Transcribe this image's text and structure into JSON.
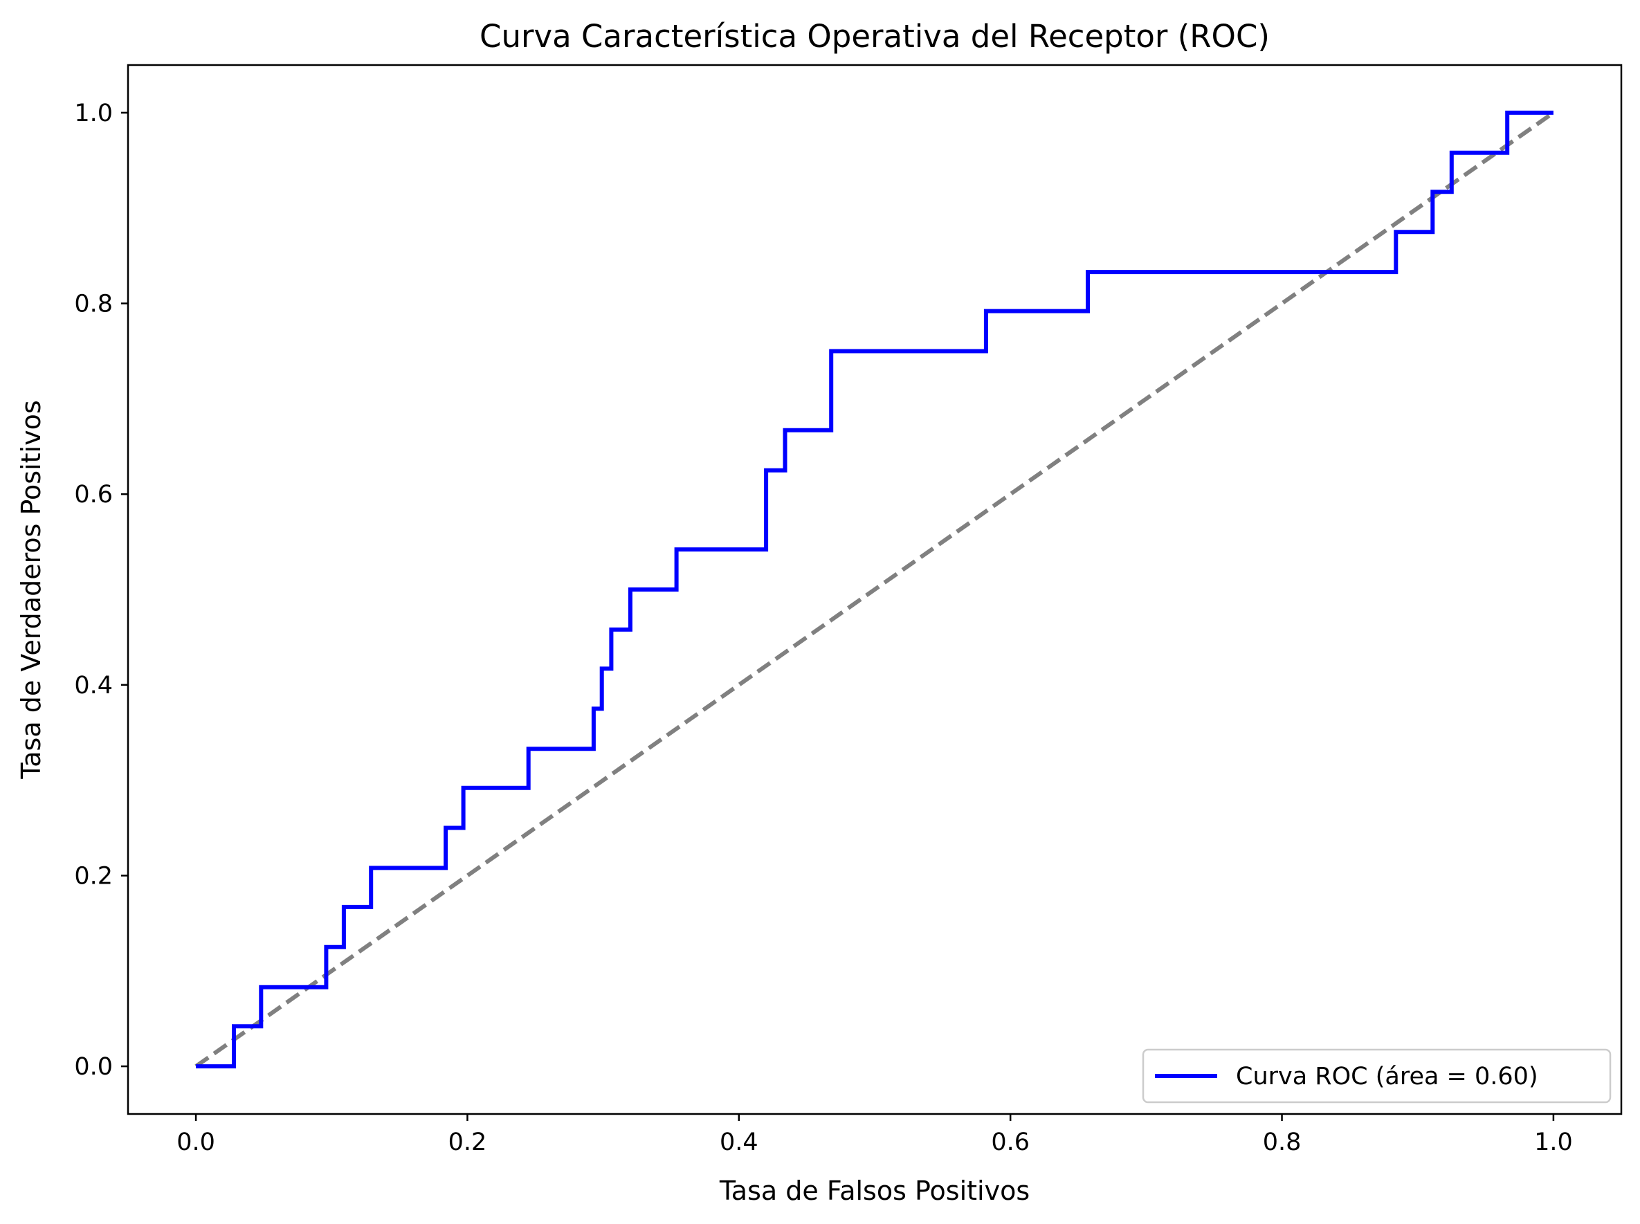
{
  "chart_data": {
    "type": "line",
    "title": "Curva Característica Operativa del Receptor (ROC)",
    "xlabel": "Tasa de Falsos Positivos",
    "ylabel": "Tasa de Verdaderos Positivos",
    "xlim": [
      -0.05,
      1.05
    ],
    "ylim": [
      -0.05,
      1.05
    ],
    "xticks": [
      0.0,
      0.2,
      0.4,
      0.6,
      0.8,
      1.0
    ],
    "xtick_labels": [
      "0.0",
      "0.2",
      "0.4",
      "0.6",
      "0.8",
      "1.0"
    ],
    "yticks": [
      0.0,
      0.2,
      0.4,
      0.6,
      0.8,
      1.0
    ],
    "ytick_labels": [
      "0.0",
      "0.2",
      "0.4",
      "0.6",
      "0.8",
      "1.0"
    ],
    "grid": false,
    "legend_position": "lower-right",
    "series": [
      {
        "name": "Curva ROC (área = 0.60)",
        "color": "#0000ff",
        "style": "step",
        "x": [
          0.0,
          0.0,
          0.028,
          0.028,
          0.048,
          0.048,
          0.096,
          0.096,
          0.109,
          0.109,
          0.129,
          0.129,
          0.184,
          0.184,
          0.197,
          0.197,
          0.245,
          0.245,
          0.293,
          0.293,
          0.299,
          0.299,
          0.306,
          0.306,
          0.32,
          0.32,
          0.354,
          0.354,
          0.42,
          0.42,
          0.434,
          0.434,
          0.468,
          0.468,
          0.582,
          0.582,
          0.657,
          0.657,
          0.884,
          0.884,
          0.911,
          0.911,
          0.925,
          0.925,
          0.966,
          0.966,
          1.0
        ],
        "y": [
          0.0,
          0.0,
          0.0,
          0.042,
          0.042,
          0.083,
          0.083,
          0.125,
          0.125,
          0.167,
          0.167,
          0.208,
          0.208,
          0.25,
          0.25,
          0.292,
          0.292,
          0.333,
          0.333,
          0.375,
          0.375,
          0.417,
          0.417,
          0.458,
          0.458,
          0.5,
          0.5,
          0.542,
          0.542,
          0.625,
          0.625,
          0.667,
          0.667,
          0.75,
          0.75,
          0.792,
          0.792,
          0.833,
          0.833,
          0.875,
          0.875,
          0.917,
          0.917,
          0.958,
          0.958,
          1.0,
          1.0
        ]
      },
      {
        "name": "",
        "color": "#808080",
        "style": "dashed",
        "x": [
          0.0,
          1.0
        ],
        "y": [
          0.0,
          1.0
        ]
      }
    ]
  }
}
